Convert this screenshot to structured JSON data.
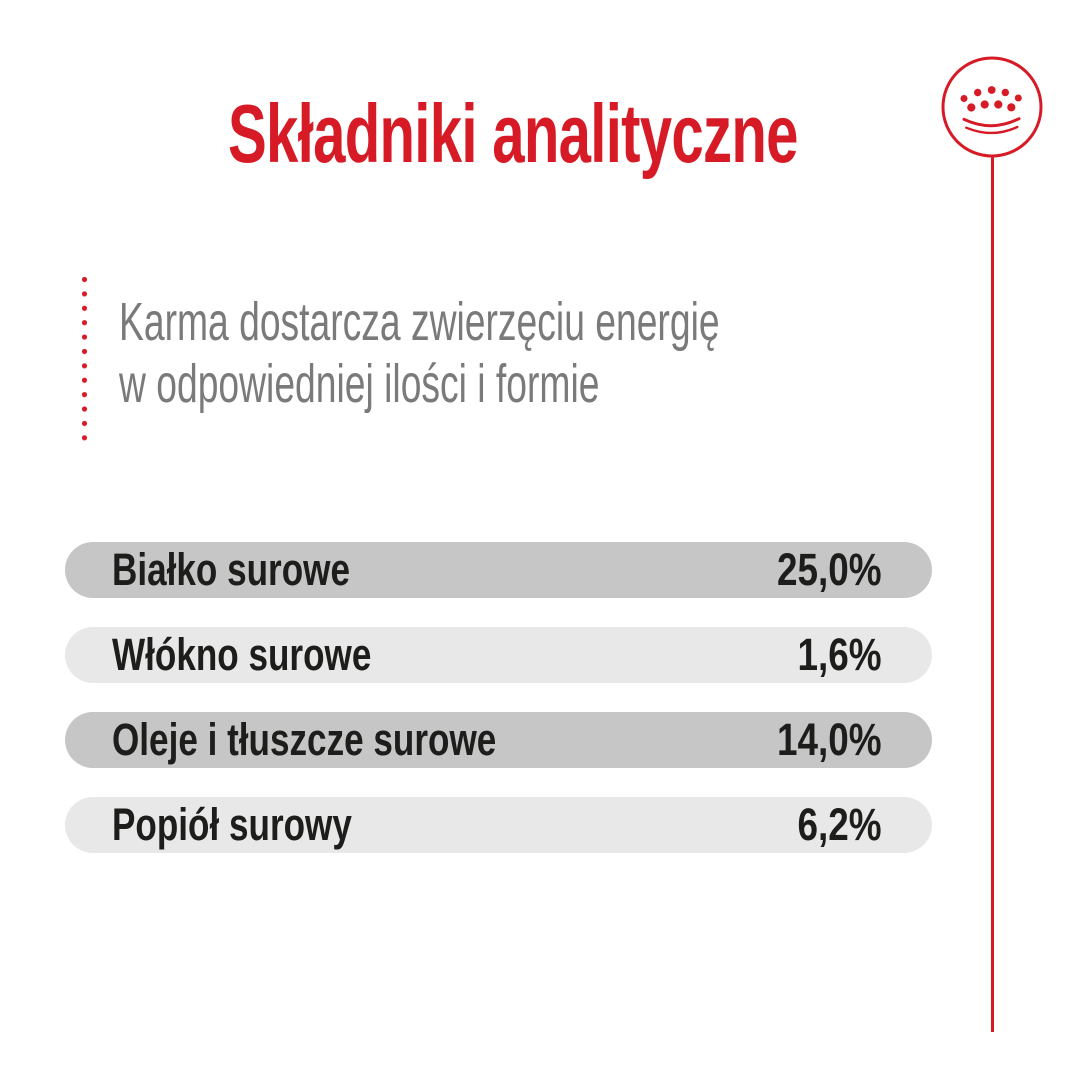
{
  "title": "Składniki analityczne",
  "intro": {
    "line1": "Karma dostarcza zwierzęciu energię",
    "line2": "w odpowiedniej ilości i formie"
  },
  "logo": {
    "name": "royal-canin-crown-logo"
  },
  "table": {
    "rows": [
      {
        "label": "Białko surowe",
        "value": "25,0%"
      },
      {
        "label": "Włókno surowe",
        "value": "1,6%"
      },
      {
        "label": "Oleje i tłuszcze surowe",
        "value": "14,0%"
      },
      {
        "label": "Popiół surowy",
        "value": "6,2%"
      }
    ]
  },
  "colors": {
    "red": "#d61b26",
    "row_dark": "#c6c6c6",
    "row_light": "#e8e8e8",
    "text_dark": "#1d1d1b",
    "text_gray": "#7a7a7a"
  }
}
